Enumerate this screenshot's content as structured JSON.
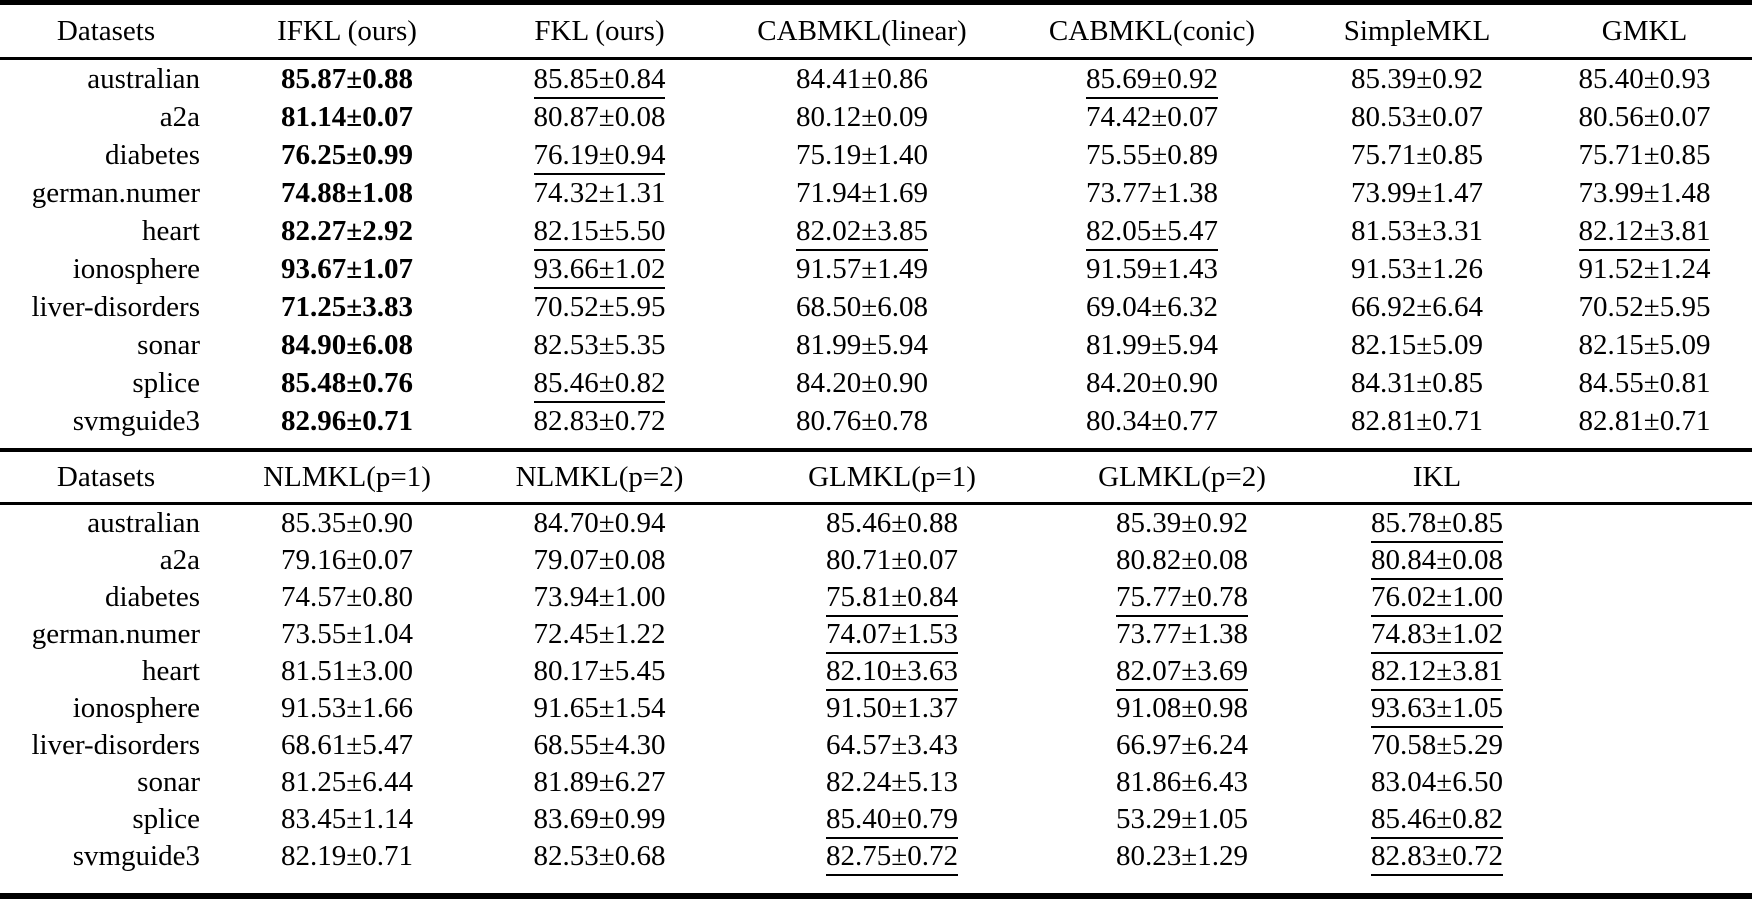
{
  "page": {
    "background_color": "#ffffff",
    "text_color": "#000000",
    "plus_minus_symbol": "±"
  },
  "table_top": {
    "columns": [
      "Datasets",
      "IFKL (ours)",
      "FKL (ours)",
      "CABMKL(linear)",
      "CABMKL(conic)",
      "SimpleMKL",
      "GMKL"
    ],
    "rows": [
      {
        "dataset": "australian",
        "cells": [
          {
            "t": "85.87±0.88",
            "b": true
          },
          {
            "t": "85.85±0.84",
            "u": true
          },
          {
            "t": "84.41±0.86"
          },
          {
            "t": "85.69±0.92",
            "u": true
          },
          {
            "t": "85.39±0.92"
          },
          {
            "t": "85.40±0.93"
          }
        ]
      },
      {
        "dataset": "a2a",
        "cells": [
          {
            "t": "81.14±0.07",
            "b": true
          },
          {
            "t": "80.87±0.08"
          },
          {
            "t": "80.12±0.09"
          },
          {
            "t": "74.42±0.07"
          },
          {
            "t": "80.53±0.07"
          },
          {
            "t": "80.56±0.07"
          }
        ]
      },
      {
        "dataset": "diabetes",
        "cells": [
          {
            "t": "76.25±0.99",
            "b": true
          },
          {
            "t": "76.19±0.94",
            "u": true
          },
          {
            "t": "75.19±1.40"
          },
          {
            "t": "75.55±0.89"
          },
          {
            "t": "75.71±0.85"
          },
          {
            "t": "75.71±0.85"
          }
        ]
      },
      {
        "dataset": "german.numer",
        "cells": [
          {
            "t": "74.88±1.08",
            "b": true
          },
          {
            "t": "74.32±1.31"
          },
          {
            "t": "71.94±1.69"
          },
          {
            "t": "73.77±1.38"
          },
          {
            "t": "73.99±1.47"
          },
          {
            "t": "73.99±1.48"
          }
        ]
      },
      {
        "dataset": "heart",
        "cells": [
          {
            "t": "82.27±2.92",
            "b": true
          },
          {
            "t": "82.15±5.50",
            "u": true
          },
          {
            "t": "82.02±3.85",
            "u": true
          },
          {
            "t": "82.05±5.47",
            "u": true
          },
          {
            "t": "81.53±3.31"
          },
          {
            "t": "82.12±3.81",
            "u": true
          }
        ]
      },
      {
        "dataset": "ionosphere",
        "cells": [
          {
            "t": "93.67±1.07",
            "b": true
          },
          {
            "t": "93.66±1.02",
            "u": true
          },
          {
            "t": "91.57±1.49"
          },
          {
            "t": "91.59±1.43"
          },
          {
            "t": "91.53±1.26"
          },
          {
            "t": "91.52±1.24"
          }
        ]
      },
      {
        "dataset": "liver-disorders",
        "cells": [
          {
            "t": "71.25±3.83",
            "b": true
          },
          {
            "t": "70.52±5.95"
          },
          {
            "t": "68.50±6.08"
          },
          {
            "t": "69.04±6.32"
          },
          {
            "t": "66.92±6.64"
          },
          {
            "t": "70.52±5.95"
          }
        ]
      },
      {
        "dataset": "sonar",
        "cells": [
          {
            "t": "84.90±6.08",
            "b": true
          },
          {
            "t": "82.53±5.35"
          },
          {
            "t": "81.99±5.94"
          },
          {
            "t": "81.99±5.94"
          },
          {
            "t": "82.15±5.09"
          },
          {
            "t": "82.15±5.09"
          }
        ]
      },
      {
        "dataset": "splice",
        "cells": [
          {
            "t": "85.48±0.76",
            "b": true
          },
          {
            "t": "85.46±0.82",
            "u": true
          },
          {
            "t": "84.20±0.90"
          },
          {
            "t": "84.20±0.90"
          },
          {
            "t": "84.31±0.85"
          },
          {
            "t": "84.55±0.81"
          }
        ]
      },
      {
        "dataset": "svmguide3",
        "cells": [
          {
            "t": "82.96±0.71",
            "b": true
          },
          {
            "t": "82.83±0.72"
          },
          {
            "t": "80.76±0.78"
          },
          {
            "t": "80.34±0.77"
          },
          {
            "t": "82.81±0.71"
          },
          {
            "t": "82.81±0.71"
          }
        ]
      }
    ]
  },
  "table_bottom": {
    "columns": [
      "Datasets",
      "NLMKL(p=1)",
      "NLMKL(p=2)",
      "GLMKL(p=1)",
      "GLMKL(p=2)",
      "IKL"
    ],
    "rows": [
      {
        "dataset": "australian",
        "cells": [
          {
            "t": "85.35±0.90"
          },
          {
            "t": "84.70±0.94"
          },
          {
            "t": "85.46±0.88"
          },
          {
            "t": "85.39±0.92"
          },
          {
            "t": "85.78±0.85",
            "u": true
          }
        ]
      },
      {
        "dataset": "a2a",
        "cells": [
          {
            "t": "79.16±0.07"
          },
          {
            "t": "79.07±0.08"
          },
          {
            "t": "80.71±0.07"
          },
          {
            "t": "80.82±0.08"
          },
          {
            "t": "80.84±0.08",
            "u": true
          }
        ]
      },
      {
        "dataset": "diabetes",
        "cells": [
          {
            "t": "74.57±0.80"
          },
          {
            "t": "73.94±1.00"
          },
          {
            "t": "75.81±0.84",
            "u": true
          },
          {
            "t": "75.77±0.78",
            "u": true
          },
          {
            "t": "76.02±1.00",
            "u": true
          }
        ]
      },
      {
        "dataset": "german.numer",
        "cells": [
          {
            "t": "73.55±1.04"
          },
          {
            "t": "72.45±1.22"
          },
          {
            "t": "74.07±1.53",
            "u": true
          },
          {
            "t": "73.77±1.38"
          },
          {
            "t": "74.83±1.02",
            "u": true
          }
        ]
      },
      {
        "dataset": "heart",
        "cells": [
          {
            "t": "81.51±3.00"
          },
          {
            "t": "80.17±5.45"
          },
          {
            "t": "82.10±3.63",
            "u": true
          },
          {
            "t": "82.07±3.69",
            "u": true
          },
          {
            "t": "82.12±3.81",
            "u": true
          }
        ]
      },
      {
        "dataset": "ionosphere",
        "cells": [
          {
            "t": "91.53±1.66"
          },
          {
            "t": "91.65±1.54"
          },
          {
            "t": "91.50±1.37"
          },
          {
            "t": "91.08±0.98"
          },
          {
            "t": "93.63±1.05",
            "u": true
          }
        ]
      },
      {
        "dataset": "liver-disorders",
        "cells": [
          {
            "t": "68.61±5.47"
          },
          {
            "t": "68.55±4.30"
          },
          {
            "t": "64.57±3.43"
          },
          {
            "t": "66.97±6.24"
          },
          {
            "t": "70.58±5.29"
          }
        ]
      },
      {
        "dataset": "sonar",
        "cells": [
          {
            "t": "81.25±6.44"
          },
          {
            "t": "81.89±6.27"
          },
          {
            "t": "82.24±5.13"
          },
          {
            "t": "81.86±6.43"
          },
          {
            "t": "83.04±6.50"
          }
        ]
      },
      {
        "dataset": "splice",
        "cells": [
          {
            "t": "83.45±1.14"
          },
          {
            "t": "83.69±0.99"
          },
          {
            "t": "85.40±0.79",
            "u": true
          },
          {
            "t": "53.29±1.05"
          },
          {
            "t": "85.46±0.82",
            "u": true
          }
        ]
      },
      {
        "dataset": "svmguide3",
        "cells": [
          {
            "t": "82.19±0.71"
          },
          {
            "t": "82.53±0.68"
          },
          {
            "t": "82.75±0.72",
            "u": true
          },
          {
            "t": "80.23±1.29"
          },
          {
            "t": "82.83±0.72",
            "u": true
          }
        ]
      }
    ]
  }
}
